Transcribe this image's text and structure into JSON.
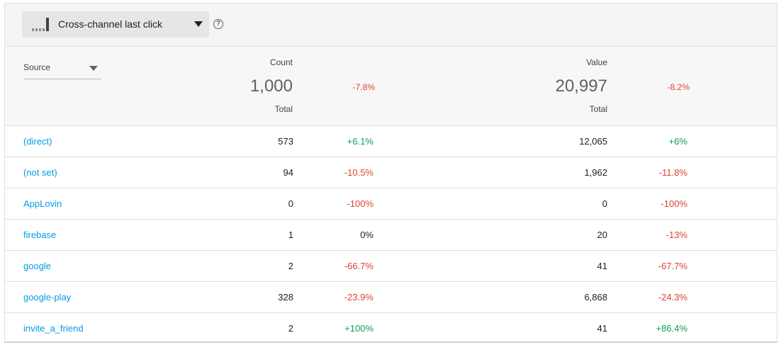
{
  "attribution": {
    "selected_model": "Cross-channel last click",
    "icon": "bar-chart-icon",
    "help_icon": "help-circle-icon",
    "help_glyph": "?"
  },
  "dimension": {
    "label": "Source"
  },
  "metrics": {
    "count": {
      "label": "Count",
      "total": "1,000",
      "total_label": "Total",
      "change": "-7.8%",
      "change_trend": "neg"
    },
    "value": {
      "label": "Value",
      "total": "20,997",
      "total_label": "Total",
      "change": "-8.2%",
      "change_trend": "neg"
    }
  },
  "colors": {
    "link": "#039be5",
    "positive": "#0f9d58",
    "negative": "#db4437"
  },
  "rows": [
    {
      "source": "(direct)",
      "count": "573",
      "count_change": "+6.1%",
      "count_trend": "pos",
      "value": "12,065",
      "value_change": "+6%",
      "value_trend": "pos"
    },
    {
      "source": "(not set)",
      "count": "94",
      "count_change": "-10.5%",
      "count_trend": "neg",
      "value": "1,962",
      "value_change": "-11.8%",
      "value_trend": "neg"
    },
    {
      "source": "AppLovin",
      "count": "0",
      "count_change": "-100%",
      "count_trend": "neg",
      "value": "0",
      "value_change": "-100%",
      "value_trend": "neg"
    },
    {
      "source": "firebase",
      "count": "1",
      "count_change": "0%",
      "count_trend": "neu",
      "value": "20",
      "value_change": "-13%",
      "value_trend": "neg"
    },
    {
      "source": "google",
      "count": "2",
      "count_change": "-66.7%",
      "count_trend": "neg",
      "value": "41",
      "value_change": "-67.7%",
      "value_trend": "neg"
    },
    {
      "source": "google-play",
      "count": "328",
      "count_change": "-23.9%",
      "count_trend": "neg",
      "value": "6,868",
      "value_change": "-24.3%",
      "value_trend": "neg"
    },
    {
      "source": "invite_a_friend",
      "count": "2",
      "count_change": "+100%",
      "count_trend": "pos",
      "value": "41",
      "value_change": "+86.4%",
      "value_trend": "pos"
    }
  ]
}
